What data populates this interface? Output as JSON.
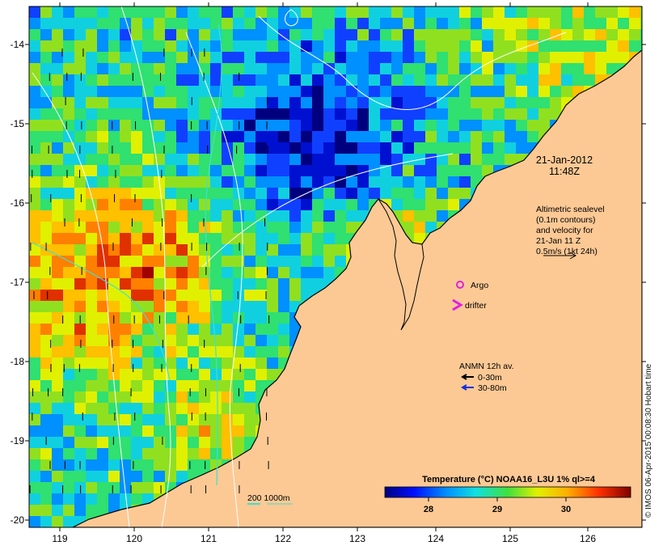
{
  "map": {
    "date_line1": "21-Jan-2012",
    "date_line2": "11:48Z",
    "altimetry_lines": [
      "Altimetric sealevel",
      "(0.1m contours)",
      "and velocity for",
      "21-Jan 11 Z",
      "0.5m/s (1kt 24h)"
    ],
    "argo_label": "Argo",
    "drifter_label": "drifter",
    "anmn_title": "ANMN 12h av.",
    "anmn_shallow": "0-30m",
    "anmn_deep": "30-80m",
    "scale_label": "200  1000m",
    "colorbar_title": "Temperature (°C) NOAA16_L3U 1% ql>=4",
    "colorbar_ticks": [
      "28",
      "29",
      "30"
    ],
    "x_ticks": [
      "119",
      "120",
      "121",
      "122",
      "123",
      "124",
      "125",
      "126"
    ],
    "y_ticks": [
      "-14",
      "-15",
      "-16",
      "-17",
      "-18",
      "-19",
      "-20"
    ],
    "credit": "© IMOS 06-Apr-2015 00:08:30 Hobart time",
    "colors": {
      "land": "#fcc995",
      "sst_cold": "#00007f",
      "sst_mid": "#33cc66",
      "sst_warm": "#7f0000",
      "argo": "#e020e0",
      "drifter": "#e020e0",
      "anmn_shallow": "#000000",
      "anmn_deep": "#1030e0",
      "contour": "#ffffff",
      "isobath": "#40e0d0"
    }
  }
}
